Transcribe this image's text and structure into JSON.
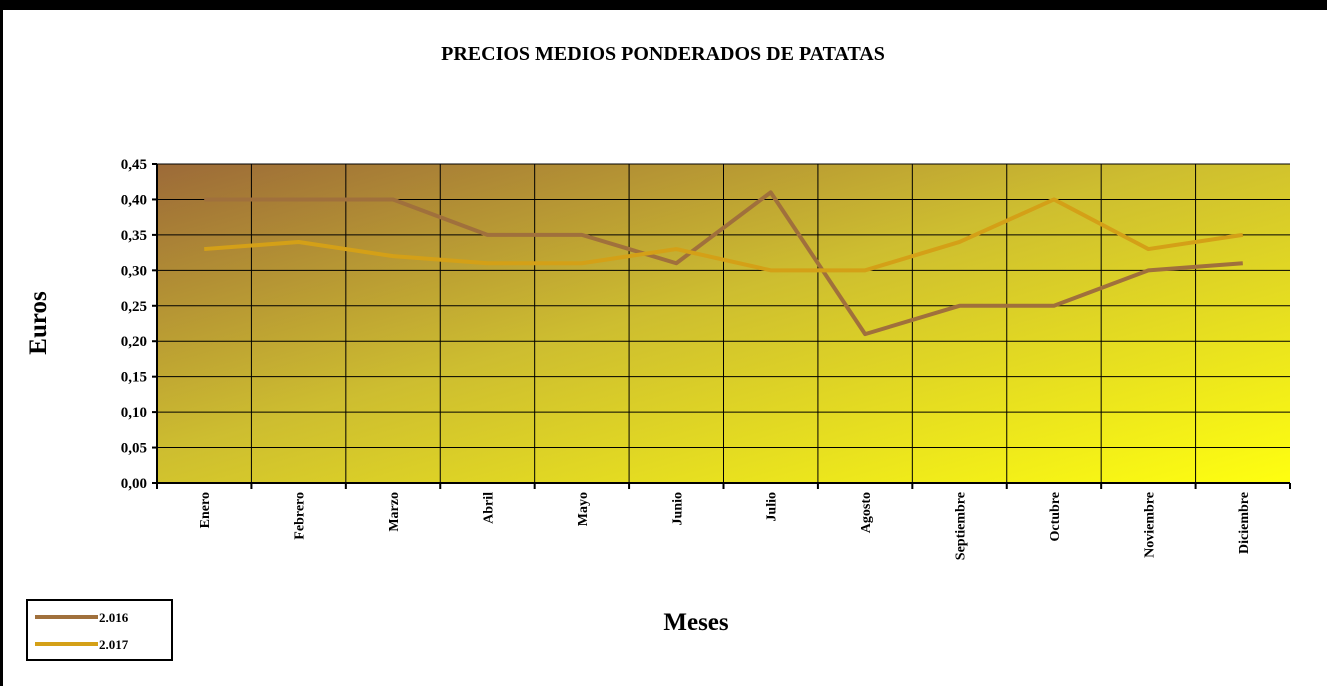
{
  "chart_data": {
    "type": "line",
    "title": "PRECIOS MEDIOS PONDERADOS DE PATATAS",
    "y_label": "Euros",
    "x_label": "Meses",
    "categories": [
      "Enero",
      "Febrero",
      "Marzo",
      "Abril",
      "Mayo",
      "Junio",
      "Julio",
      "Agosto",
      "Septiembre",
      "Octubre",
      "Noviembre",
      "Diciembre"
    ],
    "series": [
      {
        "name": "2.016",
        "color": "#a0703c",
        "values": [
          0.4,
          0.4,
          0.4,
          0.35,
          0.35,
          0.31,
          0.41,
          0.21,
          0.25,
          0.25,
          0.3,
          0.31
        ]
      },
      {
        "name": "2.017",
        "color": "#d4a017",
        "values": [
          0.33,
          0.34,
          0.32,
          0.31,
          0.31,
          0.33,
          0.3,
          0.3,
          0.34,
          0.4,
          0.33,
          0.35
        ]
      }
    ],
    "ylim": [
      0,
      0.45
    ],
    "yticks": [
      {
        "value": 0,
        "label": "0,00"
      },
      {
        "value": 0.05,
        "label": "0,05"
      },
      {
        "value": 0.1,
        "label": "0,10"
      },
      {
        "value": 0.15,
        "label": "0,15"
      },
      {
        "value": 0.2,
        "label": "0,20"
      },
      {
        "value": 0.25,
        "label": "0,25"
      },
      {
        "value": 0.3,
        "label": "0,30"
      },
      {
        "value": 0.35,
        "label": "0,35"
      },
      {
        "value": 0.4,
        "label": "0,40"
      },
      {
        "value": 0.45,
        "label": "0,45"
      }
    ],
    "grid": true,
    "legend": "bottom-left"
  }
}
